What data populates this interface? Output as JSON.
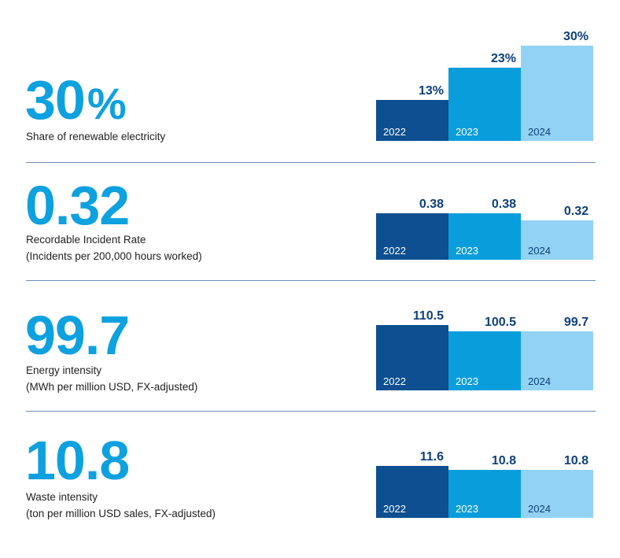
{
  "colors": {
    "accent": "#0ea1df",
    "bar_2022": "#0d4f91",
    "bar_2023": "#0a9ddc",
    "bar_2024": "#92d2f4",
    "value_text": "#0d3f7c",
    "divider": "#6f8db5"
  },
  "metrics": [
    {
      "value": "30",
      "unit": "%",
      "label_lines": [
        "Share of renewable electricity"
      ]
    },
    {
      "value": "0.32",
      "unit": "",
      "label_lines": [
        "Recordable Incident Rate",
        "(Incidents per 200,000 hours worked)"
      ]
    },
    {
      "value": "99.7",
      "unit": "",
      "label_lines": [
        "Energy intensity",
        "(MWh per million USD, FX-adjusted)"
      ]
    },
    {
      "value": "10.8",
      "unit": "",
      "label_lines": [
        "Waste intensity",
        "(ton per million USD sales, FX-adjusted)"
      ]
    }
  ],
  "chart_data": [
    {
      "type": "bar",
      "title": "Share of renewable electricity",
      "categories": [
        "2022",
        "2023",
        "2024"
      ],
      "values": [
        13,
        23,
        30
      ],
      "value_labels": [
        "13%",
        "23%",
        "30%"
      ],
      "ylim": [
        0,
        30
      ]
    },
    {
      "type": "bar",
      "title": "Recordable Incident Rate",
      "categories": [
        "2022",
        "2023",
        "2024"
      ],
      "values": [
        0.38,
        0.38,
        0.32
      ],
      "value_labels": [
        "0.38",
        "0.38",
        "0.32"
      ],
      "ylim": [
        0,
        0.38
      ]
    },
    {
      "type": "bar",
      "title": "Energy intensity",
      "categories": [
        "2022",
        "2023",
        "2024"
      ],
      "values": [
        110.5,
        100.5,
        99.7
      ],
      "value_labels": [
        "110.5",
        "100.5",
        "99.7"
      ],
      "ylim": [
        0,
        110.5
      ]
    },
    {
      "type": "bar",
      "title": "Waste intensity",
      "categories": [
        "2022",
        "2023",
        "2024"
      ],
      "values": [
        11.6,
        10.8,
        10.8
      ],
      "value_labels": [
        "11.6",
        "10.8",
        "10.8"
      ],
      "ylim": [
        0,
        11.6
      ]
    }
  ]
}
